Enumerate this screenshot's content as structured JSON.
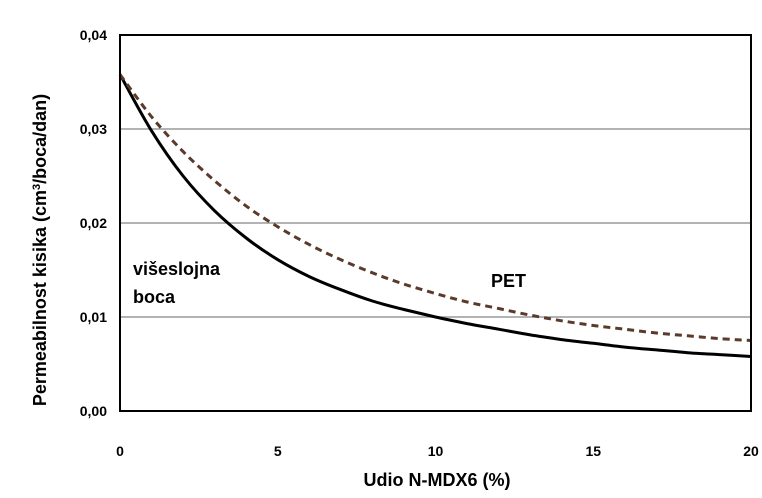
{
  "chart_data": {
    "type": "line",
    "xlabel": "Udio N-MDX6 (%)",
    "ylabel_main": "Permeabilnost kisika (cm",
    "ylabel_sup": "3",
    "ylabel_rest": "/boca/dan)",
    "xlim": [
      0,
      20
    ],
    "ylim": [
      0,
      0.04
    ],
    "x_ticks": [
      "0",
      "5",
      "10",
      "15",
      "20"
    ],
    "y_ticks": [
      "0,00",
      "0,01",
      "0,02",
      "0,03",
      "0,04"
    ],
    "grid": "horizontal",
    "legend": "none",
    "annotations": {
      "multilayer_line1": "višeslojna",
      "multilayer_line2": "boca",
      "pet": "PET"
    },
    "series": [
      {
        "id": "multilayer",
        "style": "solid",
        "color": "#000000",
        "x": [
          0,
          1,
          2,
          3,
          4,
          5,
          6,
          7,
          8,
          9,
          10,
          11,
          12,
          13,
          14,
          15,
          16,
          17,
          18,
          19,
          20
        ],
        "values": [
          0.0358,
          0.0298,
          0.025,
          0.0213,
          0.0184,
          0.0161,
          0.0143,
          0.0129,
          0.0117,
          0.0108,
          0.01,
          0.0093,
          0.0087,
          0.0081,
          0.0076,
          0.0072,
          0.0068,
          0.0065,
          0.0062,
          0.006,
          0.0058
        ]
      },
      {
        "id": "pet",
        "style": "dashed",
        "color": "#5a3a2a",
        "x": [
          0,
          1,
          2,
          3,
          4,
          5,
          6,
          7,
          8,
          9,
          10,
          11,
          12,
          13,
          14,
          15,
          16,
          17,
          18,
          19,
          20
        ],
        "values": [
          0.0358,
          0.0313,
          0.0276,
          0.0245,
          0.0218,
          0.0196,
          0.0177,
          0.0161,
          0.0147,
          0.0135,
          0.0125,
          0.0116,
          0.0109,
          0.0102,
          0.0096,
          0.0091,
          0.0087,
          0.0083,
          0.008,
          0.0077,
          0.0075
        ]
      }
    ]
  }
}
